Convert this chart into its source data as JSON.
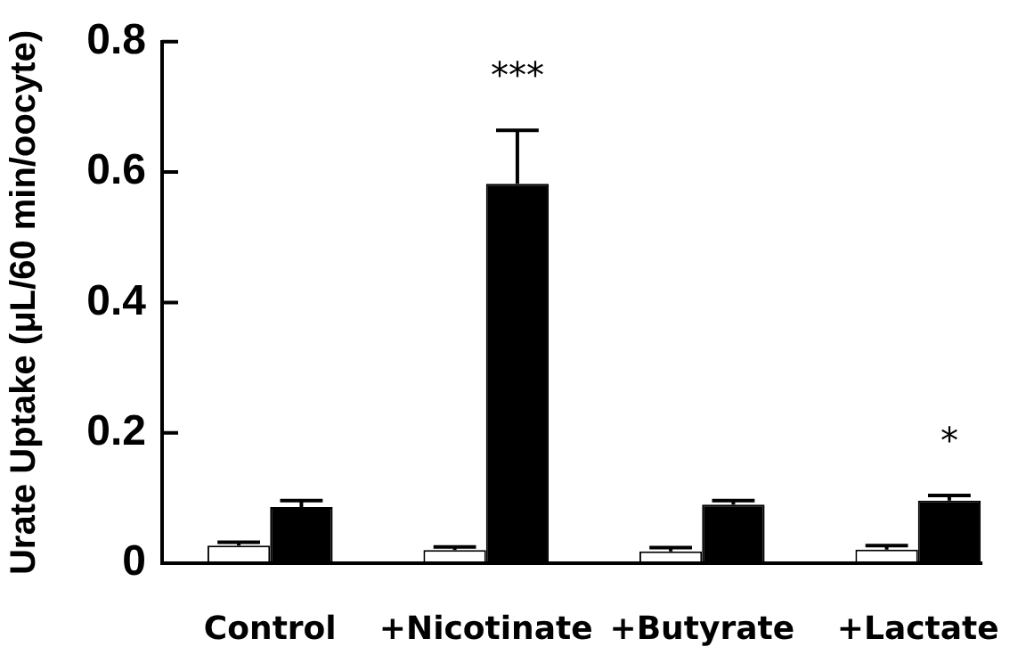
{
  "chart_data": {
    "type": "bar",
    "ylabel": "Urate Uptake (μL/60 min/oocyte)",
    "categories": [
      "Control",
      "+Nicotinate",
      "+Butyrate",
      "+Lactate"
    ],
    "series": [
      {
        "color": "#ffffff",
        "values": [
          0.027,
          0.02,
          0.018,
          0.021
        ],
        "errors": [
          [
            0.027,
            0.032
          ],
          [
            0.02,
            0.025
          ],
          [
            0.018,
            0.024
          ],
          [
            0.021,
            0.027
          ]
        ]
      },
      {
        "color": "#000000",
        "values": [
          0.086,
          0.582,
          0.09,
          0.096
        ],
        "errors": [
          [
            0.086,
            0.096
          ],
          [
            0.582,
            0.664
          ],
          [
            0.09,
            0.096
          ],
          [
            0.096,
            0.104
          ]
        ]
      }
    ],
    "ylim": [
      0,
      0.8
    ],
    "yticks": [
      0,
      0.2,
      0.4,
      0.6,
      0.8
    ],
    "annotations": [
      {
        "text": "***",
        "x": "+Nicotinate",
        "y": 0.582
      },
      {
        "text": "*",
        "x": "+Lactate",
        "y": 0.096
      }
    ],
    "grid": false,
    "legend": false
  }
}
